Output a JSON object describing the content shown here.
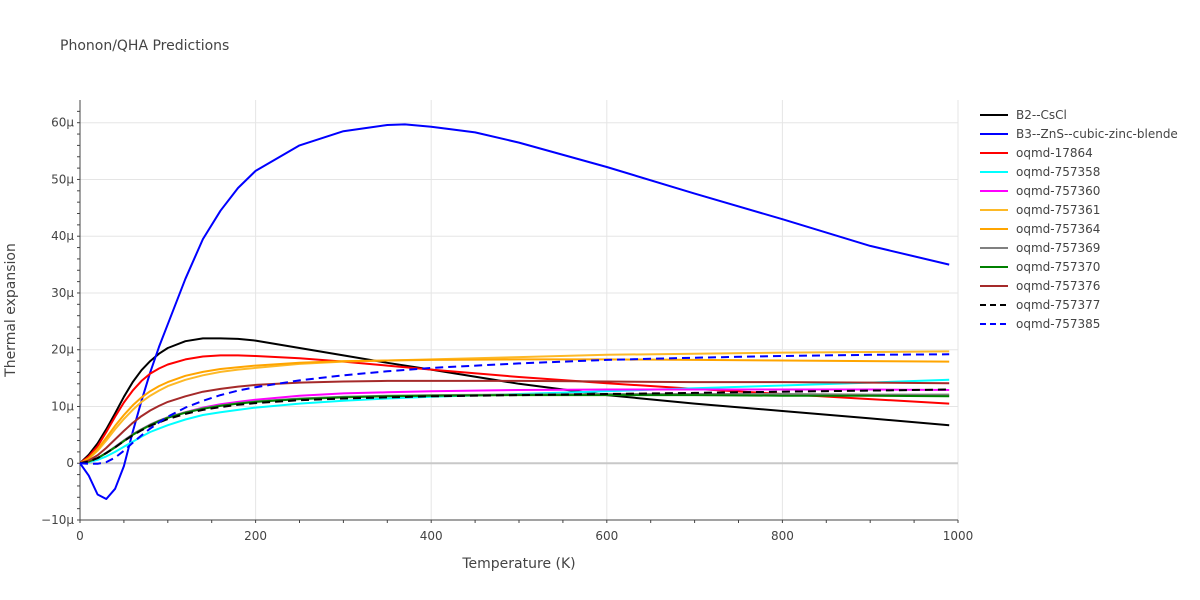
{
  "title": "Phonon/QHA Predictions",
  "chart_data": {
    "type": "line",
    "title": "Phonon/QHA Predictions",
    "xlabel": "Temperature (K)",
    "ylabel": "Thermal expansion",
    "xlim": [
      0,
      1000
    ],
    "ylim": [
      -1e-05,
      6.4e-05
    ],
    "x_ticks": [
      0,
      200,
      400,
      600,
      800,
      1000
    ],
    "x_tick_labels": [
      "0",
      "200",
      "400",
      "600",
      "800",
      "1000"
    ],
    "y_ticks": [
      -1e-05,
      0,
      1e-05,
      2e-05,
      3e-05,
      4e-05,
      5e-05,
      6e-05
    ],
    "y_tick_labels": [
      "−10μ",
      "0",
      "10μ",
      "20μ",
      "30μ",
      "40μ",
      "50μ",
      "60μ"
    ],
    "grid": true,
    "legend_position": "right",
    "series": [
      {
        "name": "B2--CsCl",
        "color": "#000000",
        "dash": "solid",
        "x": [
          0,
          10,
          20,
          30,
          40,
          50,
          60,
          70,
          80,
          90,
          100,
          120,
          140,
          160,
          180,
          200,
          250,
          300,
          350,
          400,
          500,
          600,
          700,
          800,
          900,
          990
        ],
        "y": [
          0,
          1.5e-06,
          3.5e-06,
          6e-06,
          8.8e-06,
          1.17e-05,
          1.43e-05,
          1.64e-05,
          1.8e-05,
          1.93e-05,
          2.03e-05,
          2.15e-05,
          2.2e-05,
          2.2e-05,
          2.19e-05,
          2.16e-05,
          2.03e-05,
          1.9e-05,
          1.77e-05,
          1.65e-05,
          1.4e-05,
          1.2e-05,
          1.05e-05,
          9.2e-06,
          7.9e-06,
          6.7e-06
        ]
      },
      {
        "name": "B3--ZnS--cubic-zinc-blende",
        "color": "#0000ff",
        "dash": "solid",
        "x": [
          0,
          10,
          20,
          30,
          40,
          50,
          60,
          70,
          80,
          90,
          100,
          120,
          140,
          160,
          180,
          200,
          250,
          300,
          350,
          370,
          400,
          450,
          500,
          600,
          700,
          800,
          900,
          990
        ],
        "y": [
          0,
          -2.2e-06,
          -5.5e-06,
          -6.3e-06,
          -4.5e-06,
          -5e-07,
          5.5e-06,
          1.1e-05,
          1.6e-05,
          2.05e-05,
          2.45e-05,
          3.25e-05,
          3.95e-05,
          4.45e-05,
          4.85e-05,
          5.15e-05,
          5.6e-05,
          5.85e-05,
          5.96e-05,
          5.97e-05,
          5.93e-05,
          5.83e-05,
          5.65e-05,
          5.22e-05,
          4.75e-05,
          4.3e-05,
          3.83e-05,
          3.5e-05
        ]
      },
      {
        "name": "oqmd-17864",
        "color": "#ff0000",
        "dash": "solid",
        "x": [
          0,
          10,
          20,
          30,
          40,
          50,
          60,
          70,
          80,
          90,
          100,
          120,
          140,
          160,
          180,
          200,
          250,
          300,
          350,
          400,
          500,
          600,
          700,
          800,
          900,
          990
        ],
        "y": [
          0,
          1.2e-06,
          3e-06,
          5.5e-06,
          8.2e-06,
          1.07e-05,
          1.28e-05,
          1.45e-05,
          1.58e-05,
          1.67e-05,
          1.74e-05,
          1.83e-05,
          1.88e-05,
          1.9e-05,
          1.9e-05,
          1.89e-05,
          1.85e-05,
          1.79e-05,
          1.72e-05,
          1.65e-05,
          1.52e-05,
          1.41e-05,
          1.31e-05,
          1.22e-05,
          1.13e-05,
          1.05e-05
        ]
      },
      {
        "name": "oqmd-757358",
        "color": "#00ffff",
        "dash": "solid",
        "x": [
          0,
          10,
          20,
          30,
          40,
          50,
          60,
          70,
          80,
          90,
          100,
          120,
          140,
          160,
          180,
          200,
          250,
          300,
          350,
          400,
          500,
          600,
          700,
          800,
          900,
          990
        ],
        "y": [
          0,
          2e-07,
          6e-07,
          1.2e-06,
          2e-06,
          2.9e-06,
          3.8e-06,
          4.7e-06,
          5.5e-06,
          6.1e-06,
          6.7e-06,
          7.7e-06,
          8.5e-06,
          9e-06,
          9.4e-06,
          9.8e-06,
          1.05e-05,
          1.1e-05,
          1.14e-05,
          1.17e-05,
          1.22e-05,
          1.27e-05,
          1.32e-05,
          1.37e-05,
          1.42e-05,
          1.47e-05
        ]
      },
      {
        "name": "oqmd-757360",
        "color": "#ff00ff",
        "dash": "solid",
        "x": [
          0,
          10,
          20,
          30,
          40,
          50,
          60,
          70,
          80,
          90,
          100,
          120,
          140,
          160,
          180,
          200,
          250,
          300,
          350,
          400,
          500,
          600,
          700,
          800,
          900,
          990
        ],
        "y": [
          0,
          3e-07,
          9e-07,
          1.8e-06,
          2.9e-06,
          4e-06,
          5.1e-06,
          6e-06,
          6.8e-06,
          7.5e-06,
          8.1e-06,
          9e-06,
          9.8e-06,
          1.04e-05,
          1.08e-05,
          1.12e-05,
          1.19e-05,
          1.23e-05,
          1.25e-05,
          1.27e-05,
          1.29e-05,
          1.3e-05,
          1.3e-05,
          1.3e-05,
          1.3e-05,
          1.29e-05
        ]
      },
      {
        "name": "oqmd-757361",
        "color": "#fdb927",
        "dash": "solid",
        "x": [
          0,
          10,
          20,
          30,
          40,
          50,
          60,
          70,
          80,
          90,
          100,
          120,
          140,
          160,
          180,
          200,
          250,
          300,
          350,
          400,
          500,
          600,
          700,
          800,
          900,
          990
        ],
        "y": [
          0,
          8e-07,
          2.2e-06,
          4e-06,
          6e-06,
          7.8e-06,
          9.4e-06,
          1.08e-05,
          1.19e-05,
          1.28e-05,
          1.36e-05,
          1.47e-05,
          1.55e-05,
          1.61e-05,
          1.65e-05,
          1.68e-05,
          1.75e-05,
          1.79e-05,
          1.81e-05,
          1.83e-05,
          1.87e-05,
          1.91e-05,
          1.93e-05,
          1.95e-05,
          1.96e-05,
          1.97e-05
        ]
      },
      {
        "name": "oqmd-757364",
        "color": "#ffa500",
        "dash": "solid",
        "x": [
          0,
          10,
          20,
          30,
          40,
          50,
          60,
          70,
          80,
          90,
          100,
          120,
          140,
          160,
          180,
          200,
          250,
          300,
          350,
          400,
          500,
          600,
          700,
          800,
          900,
          990
        ],
        "y": [
          0,
          9e-07,
          2.5e-06,
          4.5e-06,
          6.6e-06,
          8.5e-06,
          1.02e-05,
          1.16e-05,
          1.27e-05,
          1.36e-05,
          1.43e-05,
          1.54e-05,
          1.61e-05,
          1.66e-05,
          1.69e-05,
          1.72e-05,
          1.77e-05,
          1.8e-05,
          1.81e-05,
          1.82e-05,
          1.83e-05,
          1.83e-05,
          1.82e-05,
          1.81e-05,
          1.8e-05,
          1.79e-05
        ]
      },
      {
        "name": "oqmd-757369",
        "color": "#808080",
        "dash": "solid",
        "x": [
          0,
          10,
          20,
          30,
          40,
          50,
          60,
          70,
          80,
          90,
          100,
          120,
          140,
          160,
          180,
          200,
          250,
          300,
          350,
          400,
          500,
          600,
          700,
          800,
          900,
          990
        ],
        "y": [
          0,
          3e-07,
          9e-07,
          1.8e-06,
          2.9e-06,
          4e-06,
          5.1e-06,
          6e-06,
          6.8e-06,
          7.5e-06,
          8.1e-06,
          9e-06,
          9.7e-06,
          1.02e-05,
          1.06e-05,
          1.09e-05,
          1.14e-05,
          1.17e-05,
          1.19e-05,
          1.2e-05,
          1.21e-05,
          1.22e-05,
          1.22e-05,
          1.22e-05,
          1.21e-05,
          1.21e-05
        ]
      },
      {
        "name": "oqmd-757370",
        "color": "#008000",
        "dash": "solid",
        "x": [
          0,
          10,
          20,
          30,
          40,
          50,
          60,
          70,
          80,
          90,
          100,
          120,
          140,
          160,
          180,
          200,
          250,
          300,
          350,
          400,
          500,
          600,
          700,
          800,
          900,
          990
        ],
        "y": [
          0,
          3e-07,
          9e-07,
          1.8e-06,
          2.8e-06,
          3.9e-06,
          5e-06,
          5.9e-06,
          6.7e-06,
          7.4e-06,
          8e-06,
          8.9e-06,
          9.6e-06,
          1.01e-05,
          1.05e-05,
          1.08e-05,
          1.13e-05,
          1.16e-05,
          1.18e-05,
          1.19e-05,
          1.2e-05,
          1.2e-05,
          1.2e-05,
          1.19e-05,
          1.19e-05,
          1.18e-05
        ]
      },
      {
        "name": "oqmd-757376",
        "color": "#a52a2a",
        "dash": "solid",
        "x": [
          0,
          10,
          20,
          30,
          40,
          50,
          60,
          70,
          80,
          90,
          100,
          120,
          140,
          160,
          180,
          200,
          250,
          300,
          350,
          400,
          500,
          600,
          700,
          800,
          900,
          990
        ],
        "y": [
          0,
          5e-07,
          1.4e-06,
          2.7e-06,
          4.2e-06,
          5.7e-06,
          7.1e-06,
          8.3e-06,
          9.3e-06,
          1.01e-05,
          1.08e-05,
          1.18e-05,
          1.26e-05,
          1.31e-05,
          1.35e-05,
          1.38e-05,
          1.42e-05,
          1.44e-05,
          1.45e-05,
          1.45e-05,
          1.45e-05,
          1.44e-05,
          1.43e-05,
          1.43e-05,
          1.42e-05,
          1.41e-05
        ]
      },
      {
        "name": "oqmd-757377",
        "color": "#000000",
        "dash": "dash",
        "x": [
          0,
          10,
          20,
          30,
          40,
          50,
          60,
          70,
          80,
          90,
          100,
          120,
          140,
          160,
          180,
          200,
          250,
          300,
          350,
          400,
          500,
          600,
          700,
          800,
          900,
          990
        ],
        "y": [
          0,
          3e-07,
          9e-07,
          1.8e-06,
          2.8e-06,
          3.9e-06,
          4.9e-06,
          5.8e-06,
          6.6e-06,
          7.2e-06,
          7.8e-06,
          8.7e-06,
          9.4e-06,
          9.9e-06,
          1.03e-05,
          1.06e-05,
          1.11e-05,
          1.14e-05,
          1.16e-05,
          1.18e-05,
          1.2e-05,
          1.22e-05,
          1.24e-05,
          1.26e-05,
          1.28e-05,
          1.3e-05
        ]
      },
      {
        "name": "oqmd-757385",
        "color": "#0000ff",
        "dash": "dash",
        "x": [
          0,
          10,
          20,
          30,
          40,
          50,
          60,
          70,
          80,
          90,
          100,
          120,
          140,
          160,
          180,
          200,
          250,
          300,
          350,
          400,
          500,
          600,
          700,
          800,
          900,
          990
        ],
        "y": [
          0,
          -1e-07,
          -1e-07,
          2e-07,
          1e-06,
          2.2e-06,
          3.6e-06,
          4.9e-06,
          6.1e-06,
          7.2e-06,
          8.2e-06,
          9.8e-06,
          1.1e-05,
          1.2e-05,
          1.28e-05,
          1.34e-05,
          1.46e-05,
          1.55e-05,
          1.62e-05,
          1.68e-05,
          1.76e-05,
          1.82e-05,
          1.86e-05,
          1.89e-05,
          1.91e-05,
          1.92e-05
        ]
      }
    ]
  }
}
